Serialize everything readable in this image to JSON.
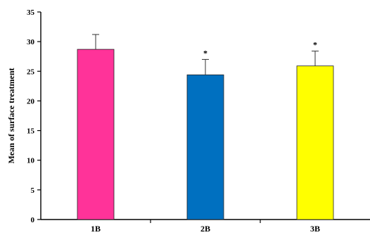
{
  "chart_data": {
    "type": "bar",
    "title": "",
    "xlabel": "",
    "ylabel": "Mean of surface treatment",
    "categories": [
      "1B",
      "2B",
      "3B"
    ],
    "values": [
      28.7,
      24.4,
      25.9
    ],
    "errors": [
      2.5,
      2.6,
      2.5
    ],
    "significance": [
      "",
      "*",
      "*"
    ],
    "colors": [
      "#ff3399",
      "#0070c0",
      "#ffff00"
    ],
    "ylim": [
      0,
      35
    ],
    "yticks": [
      0,
      5,
      10,
      15,
      20,
      25,
      30,
      35
    ],
    "grid": false,
    "legend": "none"
  }
}
